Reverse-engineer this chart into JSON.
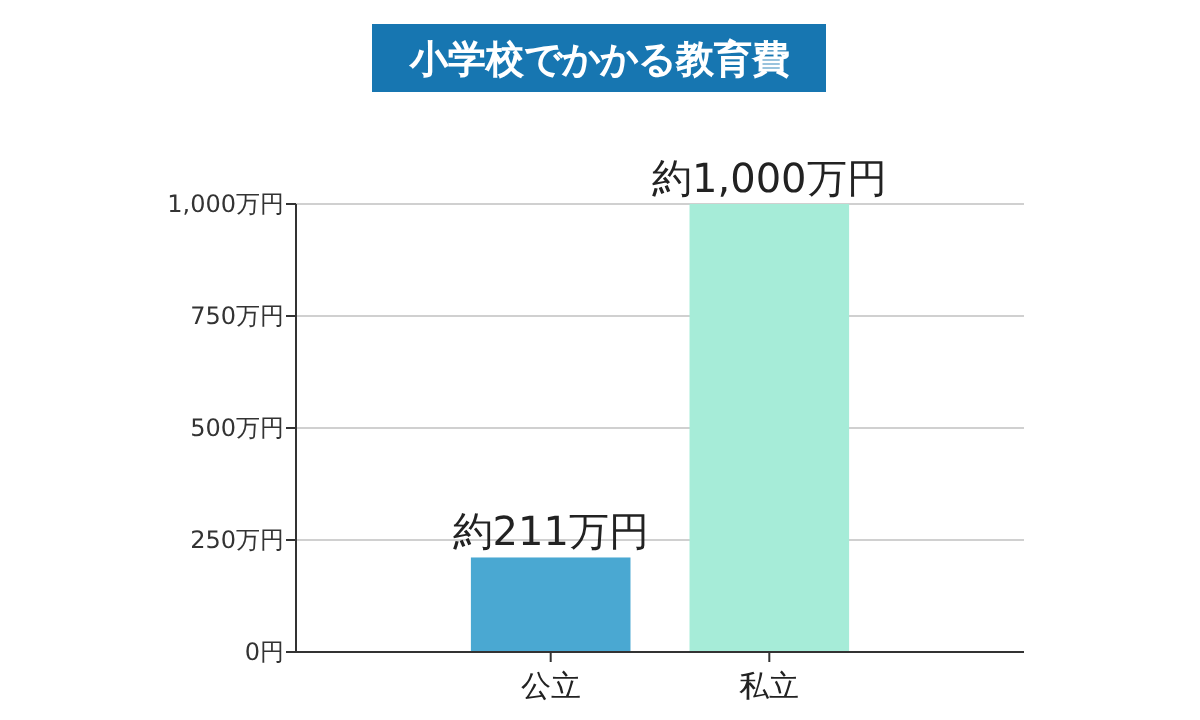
{
  "chart_data": {
    "type": "bar",
    "title": "小学校でかかる教育費",
    "categories": [
      "公立",
      "私立"
    ],
    "values": [
      211,
      1000
    ],
    "colors": [
      "#4aa8d2",
      "#a6ecd8"
    ],
    "value_labels": [
      "約211万円",
      "約1,000万円"
    ],
    "ylim": [
      0,
      1000
    ],
    "yticks": [
      {
        "value": 0,
        "label": "0円"
      },
      {
        "value": 250,
        "label": "250万円"
      },
      {
        "value": 500,
        "label": "500万円"
      },
      {
        "value": 750,
        "label": "750万円"
      },
      {
        "value": 1000,
        "label": "1,000万円"
      }
    ],
    "grid": "y"
  }
}
